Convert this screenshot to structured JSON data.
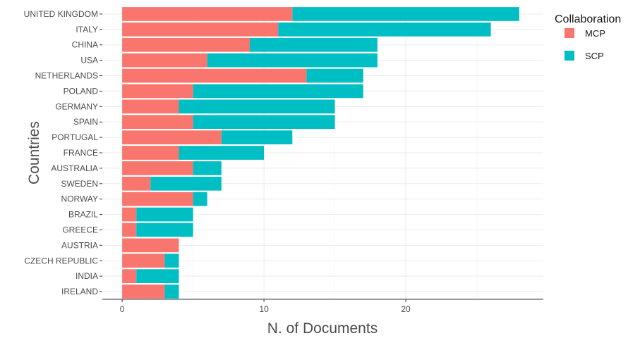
{
  "chart_data": {
    "type": "bar",
    "orientation": "horizontal",
    "stacked": true,
    "title": "",
    "xlabel": "N. of Documents",
    "ylabel": "Countries",
    "xlim": [
      -1.4,
      29.7
    ],
    "xticks": [
      0,
      10,
      20
    ],
    "grid": true,
    "legend_position": "right",
    "legend_title": "Collaboration",
    "categories": [
      "UNITED KINGDOM",
      "ITALY",
      "CHINA",
      "USA",
      "NETHERLANDS",
      "POLAND",
      "GERMANY",
      "SPAIN",
      "PORTUGAL",
      "FRANCE",
      "AUSTRALIA",
      "SWEDEN",
      "NORWAY",
      "BRAZIL",
      "GREECE",
      "AUSTRIA",
      "CZECH REPUBLIC",
      "INDIA",
      "IRELAND"
    ],
    "series": [
      {
        "name": "MCP",
        "color": "#F8766D",
        "values": [
          12,
          11,
          9,
          6,
          13,
          5,
          4,
          5,
          7,
          4,
          5,
          2,
          5,
          1,
          1,
          4,
          3,
          1,
          3
        ]
      },
      {
        "name": "SCP",
        "color": "#00BFC4",
        "values": [
          16,
          15,
          9,
          12,
          4,
          12,
          11,
          10,
          5,
          6,
          2,
          5,
          1,
          4,
          4,
          0,
          1,
          3,
          1
        ]
      }
    ]
  }
}
